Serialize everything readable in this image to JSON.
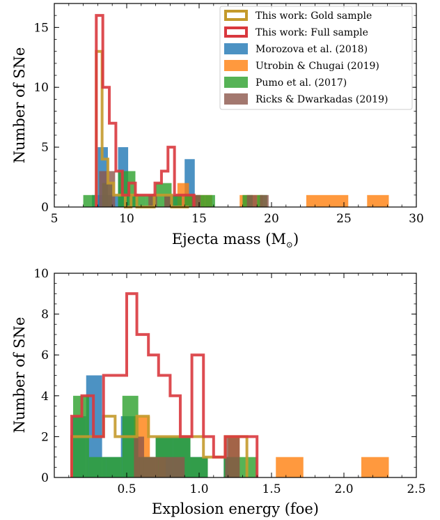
{
  "colors": {
    "gold": "#c49a2c",
    "full": "#d9383e",
    "morozova": "#1f77b4",
    "utrobin": "#ff7f0e",
    "pumo": "#2ca02c",
    "ricks": "#8c564b"
  },
  "chart_data": [
    {
      "type": "histogram",
      "ylabel": "Number of SNe",
      "xlabel_prefix": "Ejecta mass (M",
      "xlabel_sub": "⊙",
      "xlabel_suffix": ")",
      "xlim": [
        5,
        30
      ],
      "ylim": [
        0,
        17
      ],
      "xticks": [
        5,
        10,
        15,
        20,
        25,
        30
      ],
      "yticks": [
        0,
        5,
        10,
        15
      ],
      "legend": {
        "position": "top-right",
        "entries": [
          {
            "label": "This work: Gold sample",
            "style": "step",
            "color": "#c49a2c"
          },
          {
            "label": "This work: Full sample",
            "style": "step",
            "color": "#d9383e"
          },
          {
            "label": "Morozova et al. (2018)",
            "style": "fill",
            "color": "#1f77b4"
          },
          {
            "label": "Utrobin & Chugai (2019)",
            "style": "fill",
            "color": "#ff7f0e"
          },
          {
            "label": "Pumo et al. (2017)",
            "style": "fill",
            "color": "#2ca02c"
          },
          {
            "label": "Ricks & Dwarkadas (2019)",
            "style": "fill",
            "color": "#8c564b"
          }
        ]
      },
      "series": [
        {
          "name": "Morozova et al. (2018)",
          "style": "fill",
          "color": "#1f77b4",
          "bins": [
            [
              8.0,
              8.7,
              1
            ],
            [
              8.7,
              9.4,
              1
            ],
            [
              7.6,
              8.0,
              1
            ],
            [
              9.4,
              10.1,
              1
            ],
            [
              10.1,
              10.8,
              1
            ],
            [
              12.6,
              13.3,
              1
            ],
            [
              14.0,
              14.7,
              4
            ],
            [
              13.3,
              14.0,
              1
            ],
            [
              8.0,
              8.7,
              5
            ],
            [
              9.4,
              10.1,
              5
            ]
          ]
        },
        {
          "name": "Utrobin & Chugai (2019)",
          "style": "fill",
          "color": "#ff7f0e",
          "bins": [
            [
              13.5,
              14.3,
              2
            ],
            [
              14.3,
              15.1,
              1
            ],
            [
              15.1,
              15.9,
              1
            ],
            [
              17.8,
              18.6,
              1
            ],
            [
              18.6,
              19.4,
              1
            ],
            [
              22.4,
              25.3,
              1
            ],
            [
              26.6,
              28.1,
              1
            ]
          ]
        },
        {
          "name": "Pumo et al. (2017)",
          "style": "fill",
          "color": "#2ca02c",
          "bins": [
            [
              7.0,
              7.8,
              1
            ],
            [
              8.3,
              9.0,
              2
            ],
            [
              9.4,
              9.9,
              3
            ],
            [
              9.9,
              10.6,
              3
            ],
            [
              10.6,
              11.3,
              1
            ],
            [
              11.3,
              12.0,
              1
            ],
            [
              12.0,
              13.1,
              2
            ],
            [
              13.1,
              13.8,
              1
            ],
            [
              14.0,
              14.7,
              1
            ],
            [
              14.7,
              15.4,
              1
            ],
            [
              15.4,
              16.1,
              1
            ],
            [
              18.0,
              18.7,
              1
            ],
            [
              19.0,
              19.7,
              1
            ]
          ]
        },
        {
          "name": "Ricks & Dwarkadas (2019)",
          "style": "fill",
          "color": "#8c564b",
          "bins": [
            [
              8.1,
              9.2,
              3
            ],
            [
              11.5,
              12.1,
              1
            ],
            [
              12.6,
              13.2,
              1
            ],
            [
              14.5,
              15.1,
              1
            ],
            [
              18.3,
              19.0,
              1
            ],
            [
              19.2,
              19.8,
              1
            ]
          ]
        },
        {
          "name": "This work: Gold sample",
          "style": "step",
          "color": "#c49a2c",
          "edges": [
            7.9,
            8.3,
            8.7,
            9.1,
            9.5,
            9.9,
            10.3,
            10.7,
            11.1,
            11.5,
            11.9,
            12.3,
            12.7,
            13.1,
            13.5,
            13.9,
            14.3
          ],
          "counts": [
            13,
            4,
            2,
            1,
            1,
            0,
            1,
            0,
            0,
            0,
            1,
            1,
            1,
            0,
            0,
            0
          ]
        },
        {
          "name": "This work: Full sample",
          "style": "step",
          "color": "#d9383e",
          "edges": [
            7.9,
            8.35,
            8.8,
            9.25,
            9.7,
            10.15,
            10.6,
            11.05,
            11.5,
            11.95,
            12.4,
            12.85,
            13.3,
            13.75,
            14.2,
            14.65
          ],
          "counts": [
            16,
            10,
            7,
            3,
            1,
            2,
            1,
            1,
            1,
            2,
            3,
            5,
            1,
            1,
            1
          ]
        }
      ]
    },
    {
      "type": "histogram",
      "ylabel": "Number of SNe",
      "xlabel": "Explosion energy (foe)",
      "xlim": [
        0,
        2.5
      ],
      "ylim": [
        0,
        10
      ],
      "xticks": [
        0.5,
        1.0,
        1.5,
        2.0,
        2.5
      ],
      "ytick_values": [
        0,
        2,
        4,
        6,
        8,
        10
      ],
      "series": [
        {
          "name": "Morozova et al. (2018)",
          "style": "fill",
          "color": "#1f77b4",
          "bins": [
            [
              0.12,
              0.22,
              3
            ],
            [
              0.22,
              0.33,
              5
            ],
            [
              0.33,
              0.46,
              1
            ],
            [
              0.46,
              0.58,
              3
            ],
            [
              0.58,
              0.7,
              1
            ],
            [
              0.7,
              0.82,
              2
            ],
            [
              0.82,
              0.94,
              2
            ],
            [
              0.94,
              1.06,
              1
            ],
            [
              1.17,
              1.28,
              1
            ]
          ]
        },
        {
          "name": "Utrobin & Chugai (2019)",
          "style": "fill",
          "color": "#ff7f0e",
          "bins": [
            [
              0.55,
              0.66,
              3
            ],
            [
              0.66,
              0.77,
              1
            ],
            [
              1.2,
              1.28,
              2
            ],
            [
              1.53,
              1.72,
              1
            ],
            [
              2.12,
              2.31,
              1
            ]
          ]
        },
        {
          "name": "Pumo et al. (2017)",
          "style": "fill",
          "color": "#2ca02c",
          "bins": [
            [
              0.13,
              0.24,
              4
            ],
            [
              0.24,
              0.36,
              1
            ],
            [
              0.36,
              0.47,
              1
            ],
            [
              0.47,
              0.58,
              4
            ],
            [
              0.58,
              0.7,
              1
            ],
            [
              0.7,
              0.82,
              2
            ],
            [
              0.82,
              0.94,
              2
            ],
            [
              0.94,
              1.06,
              1
            ],
            [
              1.17,
              1.28,
              1
            ],
            [
              1.28,
              1.4,
              1
            ]
          ]
        },
        {
          "name": "Ricks & Dwarkadas (2019)",
          "style": "fill",
          "color": "#8c564b",
          "bins": [
            [
              0.55,
              0.62,
              2
            ],
            [
              0.62,
              0.72,
              1
            ],
            [
              0.72,
              0.82,
              1
            ],
            [
              0.82,
              0.9,
              1
            ],
            [
              1.18,
              1.28,
              2
            ]
          ]
        },
        {
          "name": "This work: Gold sample",
          "style": "step",
          "color": "#c49a2c",
          "edges": [
            0.12,
            0.19,
            0.27,
            0.34,
            0.42,
            0.5,
            0.57,
            0.65,
            0.72,
            0.8,
            0.87,
            0.95,
            1.03,
            1.1,
            1.18,
            1.25,
            1.33
          ],
          "counts": [
            2,
            2,
            2,
            3,
            2,
            2,
            3,
            2,
            2,
            2,
            2,
            2,
            1,
            1,
            2,
            2
          ]
        },
        {
          "name": "This work: Full sample",
          "style": "step",
          "color": "#d9383e",
          "edges": [
            0.12,
            0.19,
            0.27,
            0.34,
            0.42,
            0.5,
            0.57,
            0.65,
            0.72,
            0.8,
            0.87,
            0.95,
            1.03,
            1.1,
            1.18,
            1.25,
            1.33,
            1.4
          ],
          "counts": [
            3,
            4,
            2,
            5,
            5,
            9,
            7,
            6,
            5,
            4,
            2,
            6,
            2,
            1,
            2,
            2,
            2
          ]
        }
      ]
    }
  ]
}
